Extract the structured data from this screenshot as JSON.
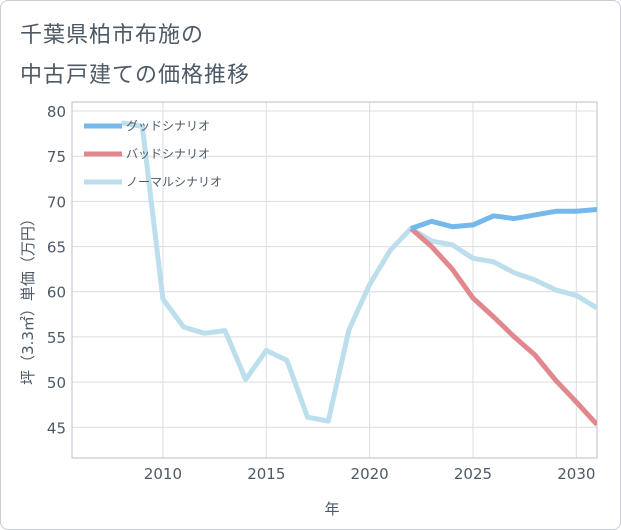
{
  "title_line1": "千葉県柏市布施の",
  "title_line2": "中古戸建ての価格推移",
  "chart_data": {
    "type": "line",
    "xlabel": "年",
    "ylabel": "坪（3.3㎡）単価（万円）",
    "xlim": [
      2005.6,
      2031
    ],
    "ylim": [
      41.6,
      81
    ],
    "xticks": [
      2010,
      2015,
      2020,
      2025,
      2030
    ],
    "yticks": [
      45,
      50,
      55,
      60,
      65,
      70,
      75,
      80
    ],
    "legend_position": "top-left",
    "series": [
      {
        "name": "グッドシナリオ",
        "color": "#74b8ec",
        "x": [
          2022,
          2023,
          2024,
          2025,
          2026,
          2027,
          2028,
          2029,
          2030,
          2031
        ],
        "values": [
          67.0,
          67.8,
          67.2,
          67.4,
          68.4,
          68.1,
          68.5,
          68.9,
          68.9,
          69.1
        ]
      },
      {
        "name": "バッドシナリオ",
        "color": "#e0888e",
        "x": [
          2022,
          2023,
          2024,
          2025,
          2026,
          2027,
          2028,
          2029,
          2030,
          2031
        ],
        "values": [
          67.0,
          65.0,
          62.5,
          59.3,
          57.2,
          55.0,
          53.0,
          50.2,
          47.8,
          45.3
        ]
      },
      {
        "name": "ノーマルシナリオ",
        "color": "#bddeec",
        "x": [
          2008,
          2009,
          2010,
          2011,
          2012,
          2013,
          2014,
          2015,
          2016,
          2017,
          2018,
          2019,
          2020,
          2021,
          2022,
          2023,
          2024,
          2025,
          2026,
          2027,
          2028,
          2029,
          2030,
          2031
        ],
        "values": [
          78.7,
          78.3,
          59.2,
          56.1,
          55.4,
          55.7,
          50.3,
          53.5,
          52.4,
          46.1,
          45.7,
          55.8,
          60.8,
          64.6,
          67.0,
          65.6,
          65.2,
          63.7,
          63.3,
          62.1,
          61.3,
          60.2,
          59.6,
          58.2
        ]
      }
    ]
  }
}
